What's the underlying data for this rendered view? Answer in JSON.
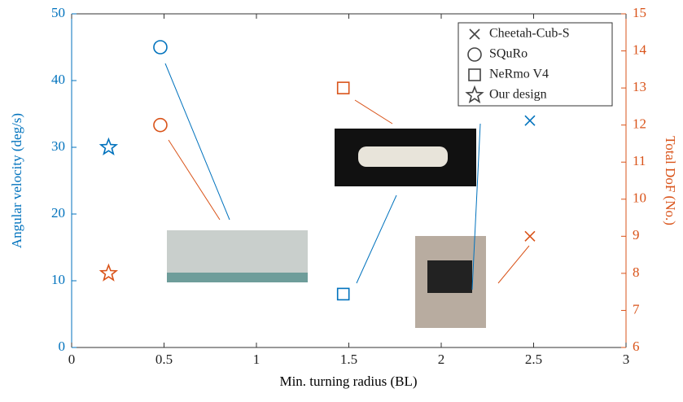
{
  "chart_data": {
    "type": "scatter",
    "x_label": "Min. turning radius (BL)",
    "y_label": "Angular velocity (deg/s)",
    "y2_label": "Total DoF (No.)",
    "y_color": "#0072bd",
    "y2_color": "#d95319",
    "xlim": [
      0,
      3
    ],
    "xticks": [
      0,
      0.5,
      1,
      1.5,
      2,
      2.5,
      3
    ],
    "ylim": [
      0,
      50
    ],
    "yticks": [
      0,
      10,
      20,
      30,
      40,
      50
    ],
    "y2lim": [
      6,
      15
    ],
    "y2ticks": [
      6,
      7,
      8,
      9,
      10,
      11,
      12,
      13,
      14,
      15
    ],
    "legend": "upper right",
    "series": [
      {
        "name": "Cheetah-Cub-S",
        "marker": "x",
        "x": 2.48,
        "angular_velocity": 34,
        "dof": 9
      },
      {
        "name": "SQuRo",
        "marker": "circle",
        "x": 0.48,
        "angular_velocity": 45,
        "dof": 12
      },
      {
        "name": "NeRmo V4",
        "marker": "square",
        "x": 1.47,
        "angular_velocity": 8,
        "dof": 13
      },
      {
        "name": "Our design",
        "marker": "star",
        "x": 0.2,
        "angular_velocity": 30,
        "dof": 8
      }
    ]
  }
}
